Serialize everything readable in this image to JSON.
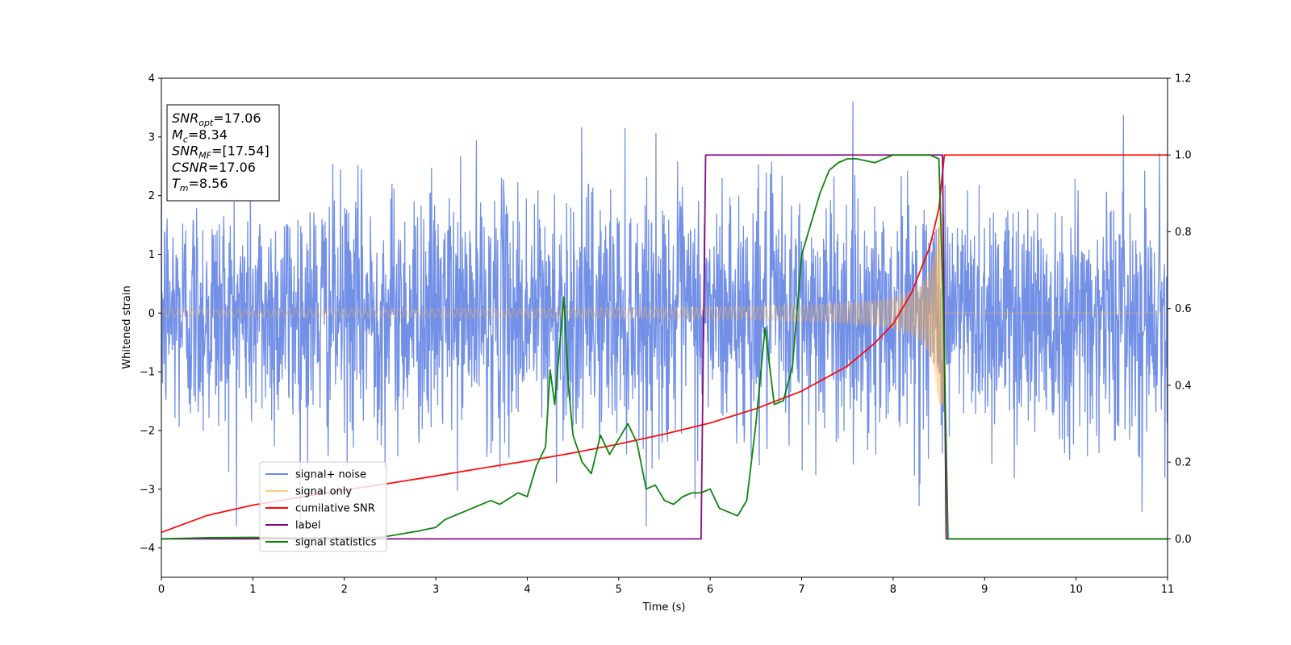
{
  "chart_data": {
    "type": "line",
    "xlabel": "Time (s)",
    "ylabel": "Whitened strain",
    "y2label": "",
    "xlim": [
      0,
      11
    ],
    "ylim": [
      -4.5,
      4
    ],
    "y2lim": [
      -0.1,
      1.2
    ],
    "x_ticks": [
      0,
      1,
      2,
      3,
      4,
      5,
      6,
      7,
      8,
      9,
      10,
      11
    ],
    "y_ticks": [
      4,
      3,
      2,
      1,
      0,
      -1,
      -2,
      -3,
      -4
    ],
    "y_tick_labels": [
      "4",
      "3",
      "2",
      "1",
      "0",
      "−1",
      "−2",
      "−3",
      "−4"
    ],
    "y2_ticks": [
      1.2,
      1.0,
      0.8,
      0.6,
      0.4,
      0.2,
      0.0
    ],
    "y2_tick_labels": [
      "1.2",
      "1.0",
      "0.8",
      "0.6",
      "0.4",
      "0.2",
      "0.0"
    ],
    "grid": false,
    "legend_position": "lower-left",
    "info_box": {
      "lines": [
        {
          "sym": "SNR",
          "sub": "opt",
          "rest": "=17.06"
        },
        {
          "sym": "M",
          "sub": "c",
          "rest": "=8.34"
        },
        {
          "sym": "SNR",
          "sub": "MF",
          "rest": "=[17.54]"
        },
        {
          "sym": "CSNR",
          "sub": "",
          "rest": "=17.06"
        },
        {
          "sym": "T",
          "sub": "m",
          "rest": "=8.56"
        }
      ]
    },
    "series": [
      {
        "name": "signal+ noise",
        "axis": "left",
        "color": "#6b8ae6",
        "style": "noise",
        "t_start": 0,
        "t_end": 11,
        "noise_amplitude_approx": 1.0,
        "peak_max": 3.62,
        "peak_min": -3.62
      },
      {
        "name": "signal only",
        "axis": "left",
        "color": "#ffb347",
        "style": "chirp",
        "t_start": 0,
        "t_merger": 8.56,
        "t_end": 11,
        "amplitude_start": 0.05,
        "amplitude_at_merger": 1.7,
        "frequency_start_hz": 12
      },
      {
        "name": "cumilative SNR",
        "axis": "right",
        "color": "#ff0000",
        "x": [
          0,
          0.5,
          1,
          1.5,
          2,
          2.5,
          3,
          3.5,
          4,
          4.5,
          5,
          5.5,
          6,
          6.5,
          7,
          7.5,
          7.8,
          8.0,
          8.2,
          8.3,
          8.4,
          8.5,
          8.56,
          8.6,
          11
        ],
        "y": [
          0.017,
          0.061,
          0.088,
          0.108,
          0.127,
          0.145,
          0.164,
          0.184,
          0.203,
          0.224,
          0.247,
          0.273,
          0.302,
          0.339,
          0.385,
          0.45,
          0.51,
          0.56,
          0.64,
          0.7,
          0.76,
          0.86,
          1.0,
          1.0,
          1.0
        ]
      },
      {
        "name": "label",
        "axis": "right",
        "color": "#800080",
        "x": [
          0,
          5.9,
          5.95,
          8.54,
          8.58,
          11
        ],
        "y": [
          0,
          0,
          1,
          1,
          0,
          0
        ]
      },
      {
        "name": "signal statistics",
        "axis": "right",
        "color": "#008000",
        "x": [
          0,
          0.5,
          1,
          1.2,
          1.5,
          2,
          2.4,
          2.8,
          3.0,
          3.1,
          3.3,
          3.5,
          3.6,
          3.7,
          3.9,
          4.0,
          4.1,
          4.2,
          4.25,
          4.3,
          4.4,
          4.45,
          4.5,
          4.6,
          4.7,
          4.8,
          4.9,
          5.0,
          5.1,
          5.2,
          5.3,
          5.4,
          5.5,
          5.6,
          5.7,
          5.8,
          5.9,
          6.0,
          6.1,
          6.2,
          6.3,
          6.4,
          6.5,
          6.6,
          6.7,
          6.8,
          6.9,
          7.0,
          7.1,
          7.2,
          7.3,
          7.4,
          7.5,
          7.6,
          7.8,
          7.9,
          8.0,
          8.1,
          8.2,
          8.4,
          8.5,
          8.55,
          8.6,
          8.7,
          11
        ],
        "y": [
          0.0,
          0.003,
          0.004,
          0.003,
          0.002,
          0.004,
          0.004,
          0.02,
          0.03,
          0.05,
          0.07,
          0.09,
          0.1,
          0.09,
          0.12,
          0.11,
          0.19,
          0.24,
          0.44,
          0.35,
          0.63,
          0.4,
          0.27,
          0.2,
          0.17,
          0.27,
          0.22,
          0.26,
          0.3,
          0.25,
          0.13,
          0.14,
          0.1,
          0.09,
          0.11,
          0.12,
          0.12,
          0.13,
          0.08,
          0.07,
          0.06,
          0.1,
          0.3,
          0.55,
          0.35,
          0.36,
          0.45,
          0.74,
          0.82,
          0.9,
          0.96,
          0.98,
          0.99,
          0.99,
          0.98,
          0.99,
          1.0,
          1.0,
          1.0,
          1.0,
          0.99,
          0.6,
          0.0,
          0.0,
          0.0
        ]
      }
    ]
  }
}
